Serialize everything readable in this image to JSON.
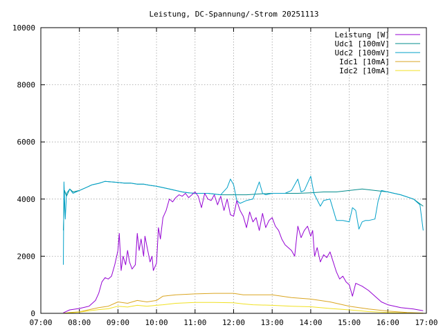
{
  "chart_data": {
    "type": "line",
    "title": "Leistung, DC-Spannung/-Strom 20251113",
    "xlabel": "",
    "ylabel": "",
    "xlim": [
      "07:00",
      "17:00"
    ],
    "ylim": [
      0,
      10000
    ],
    "x_ticks": [
      "07:00",
      "08:00",
      "09:00",
      "10:00",
      "11:00",
      "12:00",
      "13:00",
      "14:00",
      "15:00",
      "16:00",
      "17:00"
    ],
    "y_ticks": [
      "0",
      "2000",
      "4000",
      "6000",
      "8000",
      "10000"
    ],
    "grid": true,
    "legend_position": "top-right",
    "series": [
      {
        "name": "Leistung [W]",
        "color": "#9400d3",
        "points": [
          [
            "07:35",
            20
          ],
          [
            "07:45",
            120
          ],
          [
            "08:00",
            170
          ],
          [
            "08:15",
            250
          ],
          [
            "08:25",
            450
          ],
          [
            "08:30",
            700
          ],
          [
            "08:35",
            1100
          ],
          [
            "08:40",
            1250
          ],
          [
            "08:45",
            1200
          ],
          [
            "08:50",
            1300
          ],
          [
            "08:55",
            1700
          ],
          [
            "09:00",
            2200
          ],
          [
            "09:02",
            2800
          ],
          [
            "09:05",
            1500
          ],
          [
            "09:08",
            2000
          ],
          [
            "09:12",
            1700
          ],
          [
            "09:15",
            2200
          ],
          [
            "09:18",
            1800
          ],
          [
            "09:22",
            1550
          ],
          [
            "09:27",
            1700
          ],
          [
            "09:30",
            2800
          ],
          [
            "09:33",
            2200
          ],
          [
            "09:36",
            2600
          ],
          [
            "09:40",
            2000
          ],
          [
            "09:42",
            2700
          ],
          [
            "09:45",
            2350
          ],
          [
            "09:50",
            1800
          ],
          [
            "09:53",
            2000
          ],
          [
            "09:55",
            1500
          ],
          [
            "10:00",
            1750
          ],
          [
            "10:03",
            3000
          ],
          [
            "10:06",
            2600
          ],
          [
            "10:10",
            3350
          ],
          [
            "10:15",
            3600
          ],
          [
            "10:20",
            4000
          ],
          [
            "10:25",
            3900
          ],
          [
            "10:30",
            4050
          ],
          [
            "10:35",
            4150
          ],
          [
            "10:40",
            4100
          ],
          [
            "10:45",
            4200
          ],
          [
            "10:50",
            4050
          ],
          [
            "10:55",
            4150
          ],
          [
            "11:00",
            4250
          ],
          [
            "11:05",
            4100
          ],
          [
            "11:10",
            3700
          ],
          [
            "11:15",
            4200
          ],
          [
            "11:20",
            4000
          ],
          [
            "11:25",
            3950
          ],
          [
            "11:30",
            4150
          ],
          [
            "11:35",
            3800
          ],
          [
            "11:40",
            4100
          ],
          [
            "11:45",
            3600
          ],
          [
            "11:50",
            4000
          ],
          [
            "11:55",
            3450
          ],
          [
            "12:00",
            3400
          ],
          [
            "12:05",
            3950
          ],
          [
            "12:10",
            3600
          ],
          [
            "12:15",
            3400
          ],
          [
            "12:20",
            3000
          ],
          [
            "12:25",
            3550
          ],
          [
            "12:30",
            3200
          ],
          [
            "12:35",
            3350
          ],
          [
            "12:40",
            2900
          ],
          [
            "12:45",
            3500
          ],
          [
            "12:50",
            3000
          ],
          [
            "12:55",
            3250
          ],
          [
            "13:00",
            3350
          ],
          [
            "13:05",
            3050
          ],
          [
            "13:10",
            2900
          ],
          [
            "13:15",
            2600
          ],
          [
            "13:20",
            2400
          ],
          [
            "13:25",
            2300
          ],
          [
            "13:30",
            2200
          ],
          [
            "13:35",
            2000
          ],
          [
            "13:40",
            3050
          ],
          [
            "13:45",
            2650
          ],
          [
            "13:50",
            2900
          ],
          [
            "13:55",
            3050
          ],
          [
            "14:00",
            2700
          ],
          [
            "14:03",
            2900
          ],
          [
            "14:06",
            2000
          ],
          [
            "14:10",
            2300
          ],
          [
            "14:15",
            1800
          ],
          [
            "14:20",
            2050
          ],
          [
            "14:25",
            1950
          ],
          [
            "14:30",
            2150
          ],
          [
            "14:35",
            1800
          ],
          [
            "14:40",
            1450
          ],
          [
            "14:45",
            1200
          ],
          [
            "14:50",
            1300
          ],
          [
            "14:55",
            1100
          ],
          [
            "15:00",
            1000
          ],
          [
            "15:05",
            600
          ],
          [
            "15:10",
            1050
          ],
          [
            "15:20",
            950
          ],
          [
            "15:30",
            800
          ],
          [
            "15:40",
            600
          ],
          [
            "15:50",
            400
          ],
          [
            "16:00",
            300
          ],
          [
            "16:20",
            200
          ],
          [
            "16:40",
            150
          ],
          [
            "16:55",
            90
          ]
        ]
      },
      {
        "name": "Udc1 [100mV]",
        "color": "#008b8b",
        "points": [
          [
            "07:35",
            2900
          ],
          [
            "07:37",
            4300
          ],
          [
            "07:40",
            4100
          ],
          [
            "07:45",
            4350
          ],
          [
            "07:50",
            4250
          ],
          [
            "08:00",
            4300
          ],
          [
            "08:10",
            4400
          ],
          [
            "08:20",
            4500
          ],
          [
            "08:30",
            4550
          ],
          [
            "08:40",
            4620
          ],
          [
            "08:50",
            4600
          ],
          [
            "09:00",
            4580
          ],
          [
            "09:10",
            4560
          ],
          [
            "09:20",
            4560
          ],
          [
            "09:30",
            4520
          ],
          [
            "09:40",
            4520
          ],
          [
            "09:50",
            4480
          ],
          [
            "10:00",
            4450
          ],
          [
            "10:10",
            4400
          ],
          [
            "10:20",
            4350
          ],
          [
            "10:30",
            4300
          ],
          [
            "10:40",
            4250
          ],
          [
            "10:50",
            4220
          ],
          [
            "11:00",
            4200
          ],
          [
            "11:20",
            4200
          ],
          [
            "11:40",
            4150
          ],
          [
            "12:00",
            4150
          ],
          [
            "12:20",
            4150
          ],
          [
            "12:40",
            4180
          ],
          [
            "13:00",
            4200
          ],
          [
            "13:20",
            4200
          ],
          [
            "13:40",
            4200
          ],
          [
            "14:00",
            4220
          ],
          [
            "14:20",
            4250
          ],
          [
            "14:40",
            4250
          ],
          [
            "15:00",
            4300
          ],
          [
            "15:20",
            4350
          ],
          [
            "15:40",
            4300
          ],
          [
            "16:00",
            4250
          ],
          [
            "16:20",
            4150
          ],
          [
            "16:40",
            4000
          ],
          [
            "16:55",
            3750
          ]
        ]
      },
      {
        "name": "Udc2 [100mV]",
        "color": "#00a0c8",
        "points": [
          [
            "07:35",
            1700
          ],
          [
            "07:36",
            4600
          ],
          [
            "07:38",
            3300
          ],
          [
            "07:40",
            4200
          ],
          [
            "07:45",
            4350
          ],
          [
            "07:50",
            4200
          ],
          [
            "08:00",
            4300
          ],
          [
            "08:10",
            4400
          ],
          [
            "08:20",
            4500
          ],
          [
            "08:30",
            4550
          ],
          [
            "08:40",
            4620
          ],
          [
            "08:50",
            4600
          ],
          [
            "09:00",
            4580
          ],
          [
            "09:10",
            4560
          ],
          [
            "09:20",
            4560
          ],
          [
            "09:30",
            4520
          ],
          [
            "09:40",
            4520
          ],
          [
            "09:50",
            4480
          ],
          [
            "10:00",
            4450
          ],
          [
            "10:10",
            4400
          ],
          [
            "10:20",
            4350
          ],
          [
            "10:30",
            4300
          ],
          [
            "10:40",
            4250
          ],
          [
            "10:50",
            4220
          ],
          [
            "11:00",
            4200
          ],
          [
            "11:20",
            4200
          ],
          [
            "11:40",
            4150
          ],
          [
            "11:50",
            4400
          ],
          [
            "11:55",
            4700
          ],
          [
            "12:00",
            4500
          ],
          [
            "12:05",
            3950
          ],
          [
            "12:10",
            3850
          ],
          [
            "12:20",
            3950
          ],
          [
            "12:30",
            4000
          ],
          [
            "12:40",
            4600
          ],
          [
            "12:45",
            4200
          ],
          [
            "12:50",
            4150
          ],
          [
            "13:00",
            4200
          ],
          [
            "13:20",
            4200
          ],
          [
            "13:30",
            4300
          ],
          [
            "13:40",
            4700
          ],
          [
            "13:45",
            4250
          ],
          [
            "13:50",
            4300
          ],
          [
            "14:00",
            4800
          ],
          [
            "14:05",
            4200
          ],
          [
            "14:15",
            3750
          ],
          [
            "14:20",
            3950
          ],
          [
            "14:30",
            4000
          ],
          [
            "14:40",
            3250
          ],
          [
            "14:50",
            3250
          ],
          [
            "15:00",
            3200
          ],
          [
            "15:05",
            3700
          ],
          [
            "15:10",
            3600
          ],
          [
            "15:15",
            2950
          ],
          [
            "15:20",
            3200
          ],
          [
            "15:25",
            3250
          ],
          [
            "15:30",
            3250
          ],
          [
            "15:40",
            3300
          ],
          [
            "15:45",
            3950
          ],
          [
            "15:50",
            4300
          ],
          [
            "16:00",
            4250
          ],
          [
            "16:20",
            4150
          ],
          [
            "16:40",
            4000
          ],
          [
            "16:50",
            3800
          ],
          [
            "16:55",
            2900
          ]
        ]
      },
      {
        "name": "Idc1 [10mA]",
        "color": "#daa520",
        "points": [
          [
            "07:35",
            0
          ],
          [
            "07:45",
            30
          ],
          [
            "08:00",
            50
          ],
          [
            "08:30",
            200
          ],
          [
            "08:45",
            250
          ],
          [
            "09:00",
            400
          ],
          [
            "09:15",
            350
          ],
          [
            "09:30",
            450
          ],
          [
            "09:45",
            400
          ],
          [
            "10:00",
            450
          ],
          [
            "10:10",
            600
          ],
          [
            "10:30",
            650
          ],
          [
            "11:00",
            680
          ],
          [
            "11:30",
            700
          ],
          [
            "12:00",
            700
          ],
          [
            "12:15",
            650
          ],
          [
            "12:30",
            650
          ],
          [
            "13:00",
            650
          ],
          [
            "13:30",
            550
          ],
          [
            "14:00",
            500
          ],
          [
            "14:30",
            400
          ],
          [
            "15:00",
            250
          ],
          [
            "15:30",
            150
          ],
          [
            "16:00",
            80
          ],
          [
            "16:30",
            30
          ],
          [
            "16:55",
            10
          ]
        ]
      },
      {
        "name": "Idc2 [10mA]",
        "color": "#f0e020",
        "points": [
          [
            "07:35",
            0
          ],
          [
            "07:45",
            20
          ],
          [
            "08:00",
            40
          ],
          [
            "08:30",
            130
          ],
          [
            "08:45",
            160
          ],
          [
            "09:00",
            250
          ],
          [
            "09:15",
            220
          ],
          [
            "09:30",
            280
          ],
          [
            "09:45",
            250
          ],
          [
            "10:00",
            280
          ],
          [
            "10:10",
            300
          ],
          [
            "10:30",
            350
          ],
          [
            "11:00",
            380
          ],
          [
            "11:30",
            380
          ],
          [
            "12:00",
            370
          ],
          [
            "12:15",
            330
          ],
          [
            "12:30",
            300
          ],
          [
            "13:00",
            280
          ],
          [
            "13:30",
            250
          ],
          [
            "14:00",
            230
          ],
          [
            "14:30",
            170
          ],
          [
            "15:00",
            120
          ],
          [
            "15:30",
            60
          ],
          [
            "16:00",
            30
          ],
          [
            "16:30",
            10
          ],
          [
            "16:55",
            5
          ]
        ]
      }
    ]
  }
}
